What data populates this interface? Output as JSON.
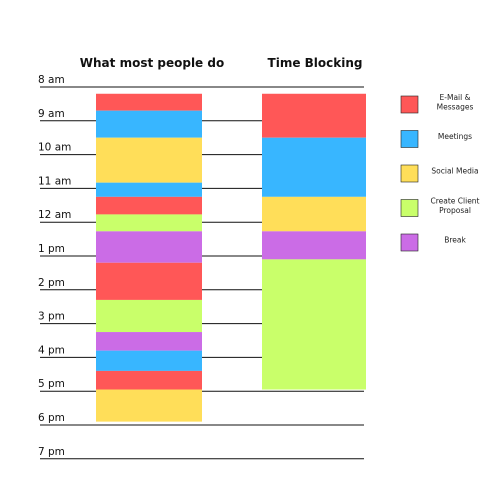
{
  "chart_data": {
    "type": "bar",
    "title": "",
    "hours": [
      "8 am",
      "9 am",
      "10 am",
      "11 am",
      "12 am",
      "1 pm",
      "2 pm",
      "3 pm",
      "4 pm",
      "5 pm",
      "6 pm",
      "7 pm"
    ],
    "ylim": [
      8,
      19
    ],
    "legend_position": "right",
    "categories": [
      {
        "id": "email",
        "label": [
          "E-Mail &",
          "Messages"
        ],
        "color": "#ff5757"
      },
      {
        "id": "meetings",
        "label": [
          "Meetings"
        ],
        "color": "#38b6ff"
      },
      {
        "id": "social",
        "label": [
          "Social Media"
        ],
        "color": "#ffde59"
      },
      {
        "id": "proposal",
        "label": [
          "Create Client",
          "Proposal"
        ],
        "color": "#c9ff6a"
      },
      {
        "id": "break",
        "label": [
          "Break"
        ],
        "color": "#cb6ce6"
      }
    ],
    "columns": [
      {
        "title": "What most people do",
        "segments": [
          {
            "category": "email",
            "start": 8.2,
            "end": 8.7
          },
          {
            "category": "meetings",
            "start": 8.7,
            "end": 9.5
          },
          {
            "category": "social",
            "start": 9.5,
            "end": 10.83
          },
          {
            "category": "meetings",
            "start": 10.83,
            "end": 11.25
          },
          {
            "category": "email",
            "start": 11.25,
            "end": 11.77
          },
          {
            "category": "proposal",
            "start": 11.77,
            "end": 12.27
          },
          {
            "category": "break",
            "start": 12.27,
            "end": 13.2
          },
          {
            "category": "email",
            "start": 13.2,
            "end": 14.3
          },
          {
            "category": "proposal",
            "start": 14.3,
            "end": 15.25
          },
          {
            "category": "break",
            "start": 15.25,
            "end": 15.8
          },
          {
            "category": "meetings",
            "start": 15.8,
            "end": 16.4
          },
          {
            "category": "email",
            "start": 16.4,
            "end": 16.95
          },
          {
            "category": "social",
            "start": 16.95,
            "end": 17.9
          }
        ]
      },
      {
        "title": "Time Blocking",
        "segments": [
          {
            "category": "email",
            "start": 8.2,
            "end": 9.5
          },
          {
            "category": "meetings",
            "start": 9.5,
            "end": 11.25
          },
          {
            "category": "social",
            "start": 11.25,
            "end": 12.27
          },
          {
            "category": "break",
            "start": 12.27,
            "end": 13.1
          },
          {
            "category": "proposal",
            "start": 13.1,
            "end": 16.95
          }
        ]
      }
    ]
  }
}
